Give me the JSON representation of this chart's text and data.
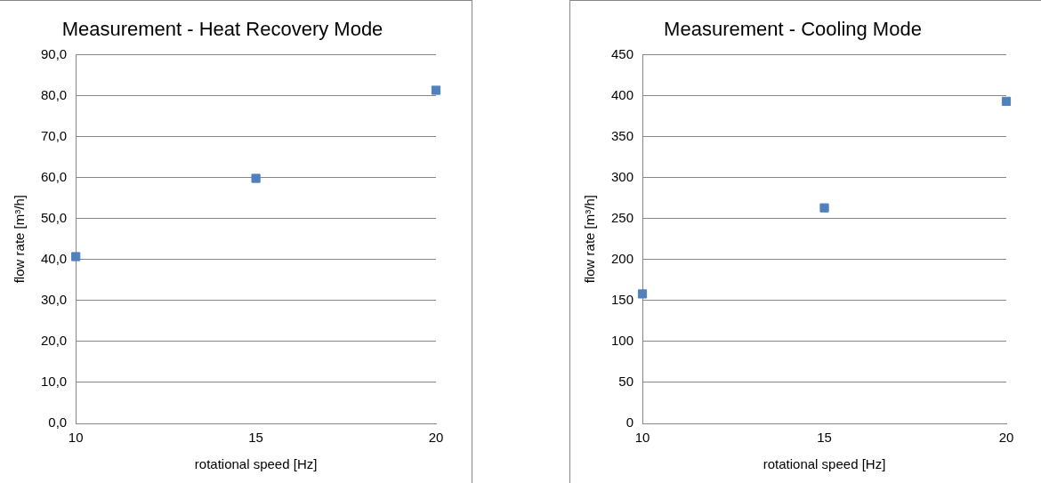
{
  "chart_data": [
    {
      "type": "scatter",
      "title": "Measurement - Heat Recovery Mode",
      "xlabel": "rotational speed [Hz]",
      "ylabel": "flow rate [m³/h]",
      "x": [
        10,
        15,
        20
      ],
      "series": [
        {
          "color": "#4f81bd",
          "values": [
            40.7,
            59.8,
            81.3
          ]
        }
      ],
      "xlim": [
        10,
        20
      ],
      "xticks": [
        10,
        15,
        20
      ],
      "ylim": [
        0,
        90
      ],
      "yticks": [
        {
          "value": 0,
          "label": "0,0"
        },
        {
          "value": 10,
          "label": "10,0"
        },
        {
          "value": 20,
          "label": "20,0"
        },
        {
          "value": 30,
          "label": "30,0"
        },
        {
          "value": 40,
          "label": "40,0"
        },
        {
          "value": 50,
          "label": "50,0"
        },
        {
          "value": 60,
          "label": "60,0"
        },
        {
          "value": 70,
          "label": "70,0"
        },
        {
          "value": 80,
          "label": "80,0"
        },
        {
          "value": 90,
          "label": "90,0"
        }
      ],
      "grid": "y",
      "legend": false,
      "marker": "square"
    },
    {
      "type": "scatter",
      "title": "Measurement - Cooling Mode",
      "xlabel": "rotational speed [Hz]",
      "ylabel": "flow rate [m³/h]",
      "x": [
        10,
        15,
        20
      ],
      "series": [
        {
          "color": "#4f81bd",
          "values": [
            158,
            263,
            393
          ]
        }
      ],
      "xlim": [
        10,
        20
      ],
      "xticks": [
        10,
        15,
        20
      ],
      "ylim": [
        0,
        450
      ],
      "yticks": [
        0,
        50,
        100,
        150,
        200,
        250,
        300,
        350,
        400,
        450
      ],
      "grid": "y",
      "legend": false,
      "marker": "square"
    }
  ]
}
